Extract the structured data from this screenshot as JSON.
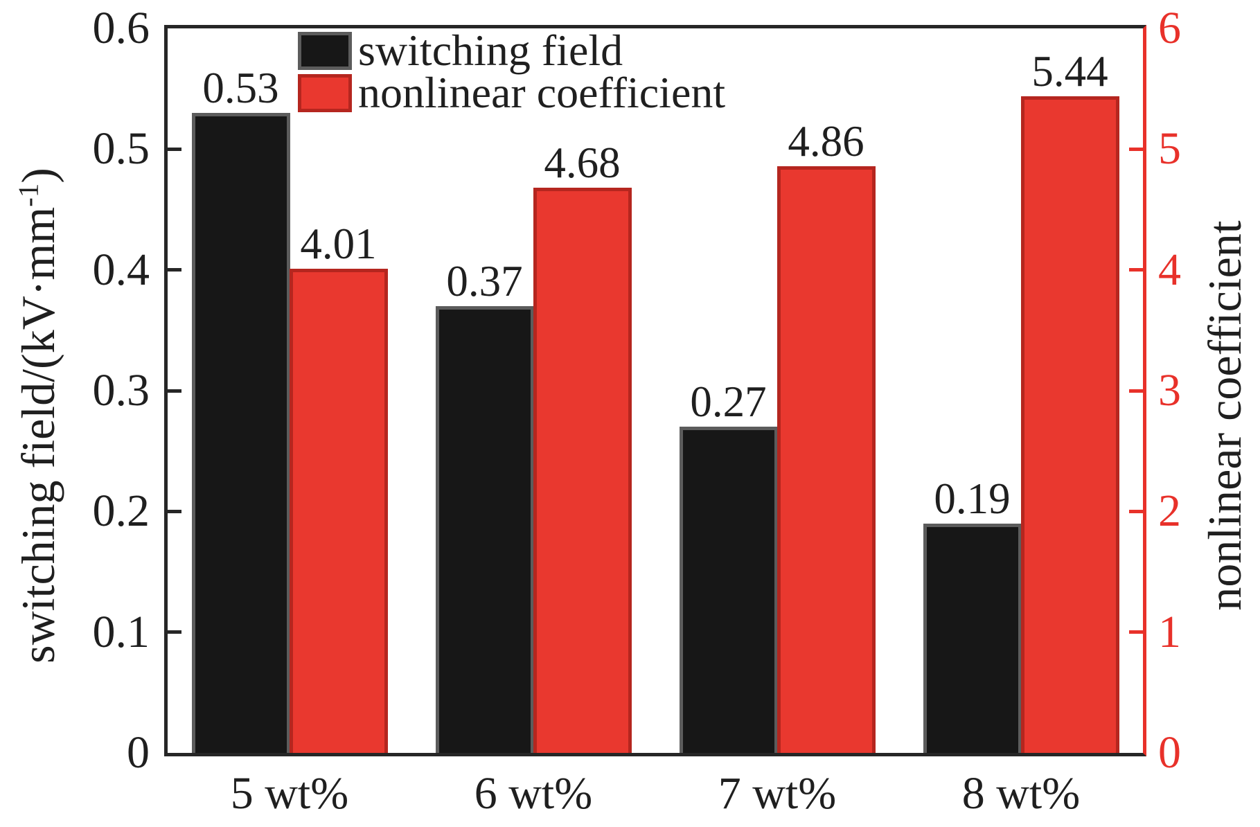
{
  "chart_data": {
    "type": "bar",
    "categories": [
      "5 wt%",
      "6 wt%",
      "7 wt%",
      "8 wt%"
    ],
    "series": [
      {
        "name": "switching field",
        "axis": "left",
        "values": [
          0.53,
          0.37,
          0.27,
          0.19
        ],
        "fill": "#171717",
        "border": "#5c5c5c"
      },
      {
        "name": "nonlinear coefficient",
        "axis": "right",
        "values": [
          4.01,
          4.68,
          4.86,
          5.44
        ],
        "fill": "#e9382f",
        "border": "#b5261f"
      }
    ],
    "left_axis": {
      "label": "switching field/(kV·mm⁻¹)",
      "label_main": "switching field/(kV·mm",
      "label_sup": "-1",
      "label_end": ")",
      "min": 0,
      "max": 0.6,
      "tick_labels": [
        "0",
        "0.1",
        "0.2",
        "0.3",
        "0.4",
        "0.5",
        "0.6"
      ],
      "color": "#1f1f1f"
    },
    "right_axis": {
      "label": "nonlinear coefficient",
      "min": 0,
      "max": 6,
      "tick_labels": [
        "0",
        "1",
        "2",
        "3",
        "4",
        "5",
        "6"
      ],
      "color": "#e8312a"
    },
    "legend": {
      "position": "top-inside",
      "entries": [
        "switching field",
        "nonlinear coefficient"
      ]
    },
    "value_labels_decimals": 2,
    "grid": false
  },
  "colors": {
    "spine": "#262626",
    "background": "#ffffff",
    "value_label": "#1f1f1f"
  }
}
